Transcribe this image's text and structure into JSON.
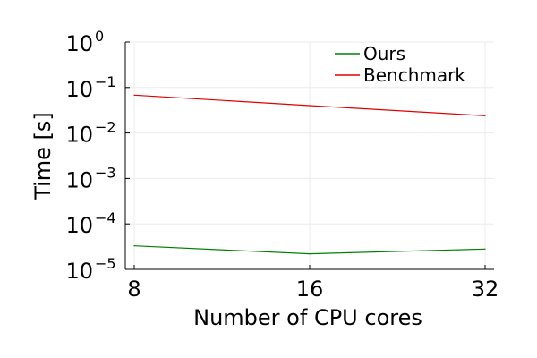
{
  "chart_data": {
    "type": "line",
    "title": "",
    "xlabel": "Number of CPU cores",
    "ylabel": "Time [s]",
    "x": [
      8,
      16,
      32
    ],
    "x_tick_labels": [
      "8",
      "16",
      "32"
    ],
    "x_scale": "log2",
    "y_scale": "log10",
    "ylim": [
      1e-05,
      1
    ],
    "y_ticks": [
      {
        "base": "10",
        "exp": "0",
        "value": 1
      },
      {
        "base": "10",
        "exp": "−1",
        "value": 0.1
      },
      {
        "base": "10",
        "exp": "−2",
        "value": 0.01
      },
      {
        "base": "10",
        "exp": "−3",
        "value": 0.001
      },
      {
        "base": "10",
        "exp": "−4",
        "value": 0.0001
      },
      {
        "base": "10",
        "exp": "−5",
        "value": 1e-05
      }
    ],
    "grid": true,
    "legend_position": "top-right",
    "series": [
      {
        "name": "Ours",
        "color": "#008000",
        "values": [
          3.3e-05,
          2.2e-05,
          2.8e-05
        ]
      },
      {
        "name": "Benchmark",
        "color": "#e00000",
        "values": [
          0.068,
          0.04,
          0.024
        ]
      }
    ]
  }
}
